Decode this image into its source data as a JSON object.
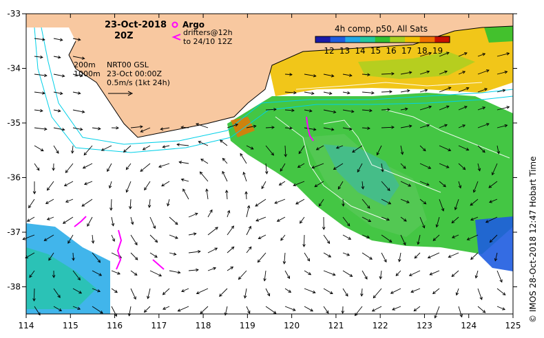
{
  "header": {
    "date": "23-Oct-2018",
    "time": "20Z"
  },
  "legend": {
    "argo_label": "Argo",
    "drifters_line1": "drifters@12h",
    "drifters_line2": "to 24/10 12Z",
    "isobath_200": "200m",
    "isobath_1000": "1000m",
    "model": "NRT00 GSL",
    "model_time": "23-Oct 00:00Z",
    "scale": "0.5m/s (1kt 24h)"
  },
  "colorbar": {
    "title": "4h comp, p50, All Sats",
    "tick_labels": [
      "12",
      "13",
      "14",
      "15",
      "16",
      "17",
      "18",
      "19"
    ],
    "colors": [
      "#1a1aa8",
      "#1e5ce0",
      "#20a8e8",
      "#22c8a0",
      "#30c030",
      "#a8d020",
      "#f0c000",
      "#f07000",
      "#c81000"
    ]
  },
  "axes": {
    "lon_labels": [
      "114",
      "115",
      "116",
      "117",
      "118",
      "119",
      "120",
      "121",
      "122",
      "123",
      "124",
      "125"
    ],
    "lat_labels": [
      "-33",
      "-34",
      "-35",
      "-36",
      "-37",
      "-38"
    ]
  },
  "credit": "© IMOS 28-Oct-2018 12:47 Hobart Time",
  "colors": {
    "land": "#f8c8a0",
    "sst_green": "#30c030",
    "sst_yellow": "#f0c000",
    "sst_blue": "#20a8e8",
    "argo": "#ff00ff",
    "contour": "#00d0e8"
  }
}
